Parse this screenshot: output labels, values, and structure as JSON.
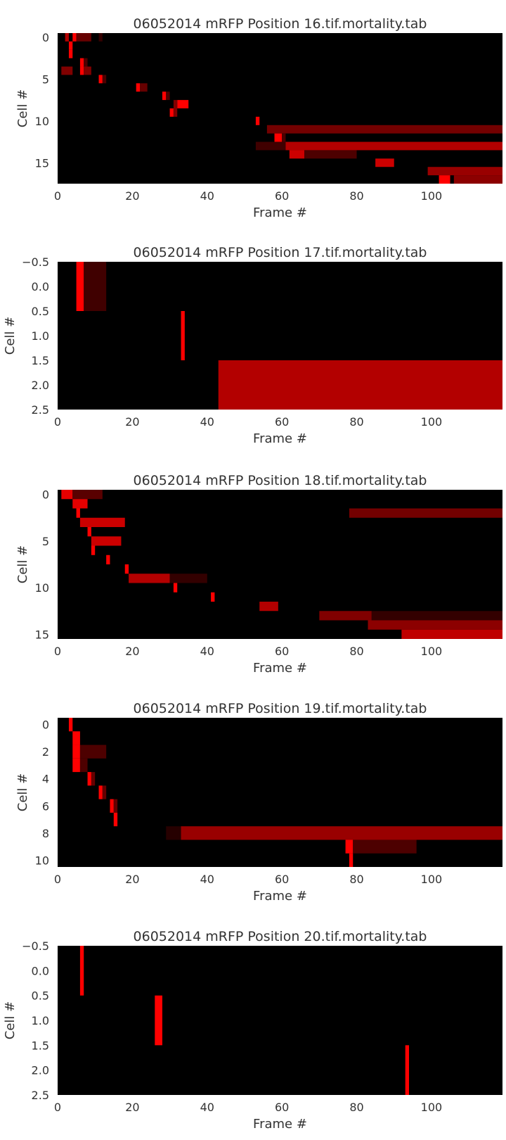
{
  "colors": {
    "background": "#000000",
    "heat": "#ff0000",
    "text": "#333333"
  },
  "chart_data": [
    {
      "type": "heatmap",
      "title": "06052014 mRFP Position 16.tif.mortality.tab",
      "xlabel": "Frame #",
      "ylabel": "Cell #",
      "xlim": [
        0,
        119
      ],
      "ylim": [
        17.5,
        -0.5
      ],
      "xticks": [
        "0",
        "20",
        "40",
        "60",
        "80",
        "100"
      ],
      "yticks": [
        "0",
        "5",
        "10",
        "15"
      ],
      "colormap": "black-to-red",
      "grid": false,
      "segments": [
        {
          "cell": 0,
          "start": 2,
          "end": 3,
          "intensity": 0.7
        },
        {
          "cell": 0,
          "start": 4,
          "end": 5,
          "intensity": 1.0
        },
        {
          "cell": 0,
          "start": 5,
          "end": 9,
          "intensity": 0.4
        },
        {
          "cell": 0,
          "start": 11,
          "end": 12,
          "intensity": 0.2
        },
        {
          "cell": 1,
          "start": 3,
          "end": 4,
          "intensity": 1.0
        },
        {
          "cell": 2,
          "start": 3,
          "end": 4,
          "intensity": 1.0
        },
        {
          "cell": 3,
          "start": 6,
          "end": 7,
          "intensity": 1.0
        },
        {
          "cell": 3,
          "start": 7,
          "end": 8,
          "intensity": 0.3
        },
        {
          "cell": 4,
          "start": 1,
          "end": 4,
          "intensity": 0.5
        },
        {
          "cell": 4,
          "start": 6,
          "end": 7,
          "intensity": 1.0
        },
        {
          "cell": 4,
          "start": 7,
          "end": 9,
          "intensity": 0.5
        },
        {
          "cell": 5,
          "start": 11,
          "end": 12,
          "intensity": 1.0
        },
        {
          "cell": 5,
          "start": 12,
          "end": 13,
          "intensity": 0.3
        },
        {
          "cell": 6,
          "start": 21,
          "end": 22,
          "intensity": 1.0
        },
        {
          "cell": 6,
          "start": 22,
          "end": 24,
          "intensity": 0.4
        },
        {
          "cell": 7,
          "start": 28,
          "end": 29,
          "intensity": 1.0
        },
        {
          "cell": 7,
          "start": 29,
          "end": 30,
          "intensity": 0.3
        },
        {
          "cell": 8,
          "start": 32,
          "end": 35,
          "intensity": 1.0
        },
        {
          "cell": 8,
          "start": 31,
          "end": 32,
          "intensity": 0.5
        },
        {
          "cell": 9,
          "start": 30,
          "end": 31,
          "intensity": 1.0
        },
        {
          "cell": 9,
          "start": 31,
          "end": 32,
          "intensity": 0.5
        },
        {
          "cell": 10,
          "start": 53,
          "end": 54,
          "intensity": 1.0
        },
        {
          "cell": 11,
          "start": 56,
          "end": 119,
          "intensity": 0.45
        },
        {
          "cell": 12,
          "start": 58,
          "end": 60,
          "intensity": 1.0
        },
        {
          "cell": 12,
          "start": 60,
          "end": 61,
          "intensity": 0.3
        },
        {
          "cell": 13,
          "start": 53,
          "end": 61,
          "intensity": 0.25
        },
        {
          "cell": 13,
          "start": 61,
          "end": 119,
          "intensity": 0.7
        },
        {
          "cell": 14,
          "start": 62,
          "end": 66,
          "intensity": 0.8
        },
        {
          "cell": 14,
          "start": 66,
          "end": 80,
          "intensity": 0.3
        },
        {
          "cell": 15,
          "start": 85,
          "end": 90,
          "intensity": 0.8
        },
        {
          "cell": 16,
          "start": 99,
          "end": 119,
          "intensity": 0.6
        },
        {
          "cell": 17,
          "start": 102,
          "end": 105,
          "intensity": 1.0
        },
        {
          "cell": 17,
          "start": 106,
          "end": 119,
          "intensity": 0.55
        }
      ]
    },
    {
      "type": "heatmap",
      "title": "06052014 mRFP Position 17.tif.mortality.tab",
      "xlabel": "Frame #",
      "ylabel": "Cell #",
      "xlim": [
        0,
        119
      ],
      "ylim": [
        2.5,
        -0.5
      ],
      "xticks": [
        "0",
        "20",
        "40",
        "60",
        "80",
        "100"
      ],
      "yticks": [
        "−0.5",
        "0.0",
        "0.5",
        "1.0",
        "1.5",
        "2.0",
        "2.5"
      ],
      "colormap": "black-to-red",
      "grid": false,
      "segments": [
        {
          "cell": 0,
          "start": 5,
          "end": 7,
          "intensity": 1.0
        },
        {
          "cell": 0,
          "start": 7,
          "end": 13,
          "intensity": 0.25
        },
        {
          "cell": 1,
          "start": 33,
          "end": 34,
          "intensity": 1.0
        },
        {
          "cell": 2,
          "start": 43,
          "end": 119,
          "intensity": 0.7
        }
      ]
    },
    {
      "type": "heatmap",
      "title": "06052014 mRFP Position 18.tif.mortality.tab",
      "xlabel": "Frame #",
      "ylabel": "Cell #",
      "xlim": [
        0,
        119
      ],
      "ylim": [
        15.5,
        -0.5
      ],
      "xticks": [
        "0",
        "20",
        "40",
        "60",
        "80",
        "100"
      ],
      "yticks": [
        "0",
        "5",
        "10",
        "15"
      ],
      "colormap": "black-to-red",
      "grid": false,
      "segments": [
        {
          "cell": 0,
          "start": 1,
          "end": 4,
          "intensity": 0.9
        },
        {
          "cell": 0,
          "start": 4,
          "end": 12,
          "intensity": 0.35
        },
        {
          "cell": 1,
          "start": 4,
          "end": 8,
          "intensity": 0.9
        },
        {
          "cell": 2,
          "start": 5,
          "end": 6,
          "intensity": 1.0
        },
        {
          "cell": 2,
          "start": 78,
          "end": 119,
          "intensity": 0.45
        },
        {
          "cell": 3,
          "start": 6,
          "end": 18,
          "intensity": 0.8
        },
        {
          "cell": 4,
          "start": 8,
          "end": 9,
          "intensity": 1.0
        },
        {
          "cell": 5,
          "start": 9,
          "end": 17,
          "intensity": 0.8
        },
        {
          "cell": 6,
          "start": 9,
          "end": 10,
          "intensity": 1.0
        },
        {
          "cell": 7,
          "start": 13,
          "end": 14,
          "intensity": 1.0
        },
        {
          "cell": 8,
          "start": 18,
          "end": 19,
          "intensity": 1.0
        },
        {
          "cell": 9,
          "start": 19,
          "end": 30,
          "intensity": 0.7
        },
        {
          "cell": 9,
          "start": 30,
          "end": 40,
          "intensity": 0.2
        },
        {
          "cell": 10,
          "start": 31,
          "end": 32,
          "intensity": 1.0
        },
        {
          "cell": 11,
          "start": 41,
          "end": 42,
          "intensity": 1.0
        },
        {
          "cell": 12,
          "start": 54,
          "end": 59,
          "intensity": 0.7
        },
        {
          "cell": 13,
          "start": 70,
          "end": 84,
          "intensity": 0.5
        },
        {
          "cell": 13,
          "start": 84,
          "end": 119,
          "intensity": 0.2
        },
        {
          "cell": 14,
          "start": 83,
          "end": 119,
          "intensity": 0.55
        },
        {
          "cell": 15,
          "start": 92,
          "end": 119,
          "intensity": 0.75
        }
      ]
    },
    {
      "type": "heatmap",
      "title": "06052014 mRFP Position 19.tif.mortality.tab",
      "xlabel": "Frame #",
      "ylabel": "Cell #",
      "xlim": [
        0,
        119
      ],
      "ylim": [
        10.5,
        -0.5
      ],
      "xticks": [
        "0",
        "20",
        "40",
        "60",
        "80",
        "100"
      ],
      "yticks": [
        "0",
        "2",
        "4",
        "6",
        "8",
        "10"
      ],
      "colormap": "black-to-red",
      "grid": false,
      "segments": [
        {
          "cell": 0,
          "start": 3,
          "end": 4,
          "intensity": 1.0
        },
        {
          "cell": 1,
          "start": 4,
          "end": 6,
          "intensity": 1.0
        },
        {
          "cell": 2,
          "start": 4,
          "end": 6,
          "intensity": 1.0
        },
        {
          "cell": 2,
          "start": 6,
          "end": 13,
          "intensity": 0.3
        },
        {
          "cell": 3,
          "start": 4,
          "end": 6,
          "intensity": 1.0
        },
        {
          "cell": 3,
          "start": 6,
          "end": 8,
          "intensity": 0.3
        },
        {
          "cell": 4,
          "start": 8,
          "end": 9,
          "intensity": 1.0
        },
        {
          "cell": 4,
          "start": 9,
          "end": 10,
          "intensity": 0.4
        },
        {
          "cell": 5,
          "start": 11,
          "end": 12,
          "intensity": 1.0
        },
        {
          "cell": 5,
          "start": 12,
          "end": 13,
          "intensity": 0.4
        },
        {
          "cell": 6,
          "start": 14,
          "end": 15,
          "intensity": 1.0
        },
        {
          "cell": 6,
          "start": 15,
          "end": 16,
          "intensity": 0.4
        },
        {
          "cell": 7,
          "start": 15,
          "end": 16,
          "intensity": 1.0
        },
        {
          "cell": 8,
          "start": 29,
          "end": 33,
          "intensity": 0.15
        },
        {
          "cell": 8,
          "start": 33,
          "end": 119,
          "intensity": 0.6
        },
        {
          "cell": 9,
          "start": 77,
          "end": 79,
          "intensity": 1.0
        },
        {
          "cell": 9,
          "start": 79,
          "end": 96,
          "intensity": 0.3
        },
        {
          "cell": 10,
          "start": 78,
          "end": 79,
          "intensity": 1.0
        }
      ]
    },
    {
      "type": "heatmap",
      "title": "06052014 mRFP Position 20.tif.mortality.tab",
      "xlabel": "Frame #",
      "ylabel": "Cell #",
      "xlim": [
        0,
        119
      ],
      "ylim": [
        2.5,
        -0.5
      ],
      "xticks": [
        "0",
        "20",
        "40",
        "60",
        "80",
        "100"
      ],
      "yticks": [
        "−0.5",
        "0.0",
        "0.5",
        "1.0",
        "1.5",
        "2.0",
        "2.5"
      ],
      "colormap": "black-to-red",
      "grid": false,
      "segments": [
        {
          "cell": 0,
          "start": 6,
          "end": 7,
          "intensity": 1.0
        },
        {
          "cell": 1,
          "start": 26,
          "end": 28,
          "intensity": 1.0
        },
        {
          "cell": 2,
          "start": 93,
          "end": 94,
          "intensity": 1.0
        }
      ]
    }
  ]
}
